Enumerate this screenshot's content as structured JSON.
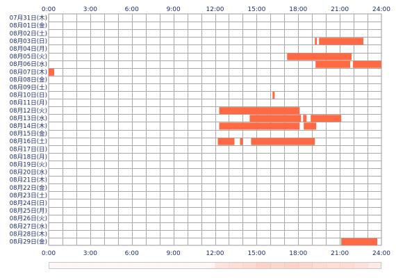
{
  "chart_data": {
    "type": "heatmap",
    "x_unit": "hour of day",
    "x_range": [
      0,
      24
    ],
    "x_ticks": [
      "0:00",
      "3:00",
      "6:00",
      "9:00",
      "12:00",
      "15:00",
      "18:00",
      "21:00",
      "24:00"
    ],
    "bar_color": "#ff6a45",
    "grid": true,
    "rows": [
      {
        "label": "07月31日(木)",
        "intervals": []
      },
      {
        "label": "08月01日(金)",
        "intervals": []
      },
      {
        "label": "08月02日(土)",
        "intervals": []
      },
      {
        "label": "08月03日(日)",
        "intervals": [
          [
            19.2,
            19.35
          ],
          [
            19.5,
            22.7
          ]
        ]
      },
      {
        "label": "08月04日(月)",
        "intervals": []
      },
      {
        "label": "08月05日(火)",
        "intervals": [
          [
            17.2,
            21.85
          ]
        ]
      },
      {
        "label": "08月06日(水)",
        "intervals": [
          [
            19.25,
            21.75
          ],
          [
            21.95,
            24.0
          ]
        ]
      },
      {
        "label": "08月07日(木)",
        "intervals": [
          [
            0.0,
            0.4
          ]
        ]
      },
      {
        "label": "08月08日(金)",
        "intervals": []
      },
      {
        "label": "08月09日(土)",
        "intervals": []
      },
      {
        "label": "08月10日(日)",
        "intervals": [
          [
            16.15,
            16.3
          ]
        ]
      },
      {
        "label": "08月11日(月)",
        "intervals": []
      },
      {
        "label": "08月12日(火)",
        "intervals": [
          [
            12.3,
            18.1
          ]
        ]
      },
      {
        "label": "08月13日(水)",
        "intervals": [
          [
            14.5,
            18.2
          ],
          [
            18.35,
            18.6
          ],
          [
            18.9,
            21.1
          ]
        ]
      },
      {
        "label": "08月14日(木)",
        "intervals": [
          [
            12.3,
            18.1
          ],
          [
            18.4,
            19.3
          ]
        ]
      },
      {
        "label": "08月15日(金)",
        "intervals": []
      },
      {
        "label": "08月16日(土)",
        "intervals": [
          [
            12.2,
            13.4
          ],
          [
            13.8,
            14.0
          ],
          [
            14.6,
            19.2
          ]
        ]
      },
      {
        "label": "08月17日(日)",
        "intervals": []
      },
      {
        "label": "08月18日(月)",
        "intervals": []
      },
      {
        "label": "08月19日(火)",
        "intervals": []
      },
      {
        "label": "08月20日(水)",
        "intervals": []
      },
      {
        "label": "08月21日(木)",
        "intervals": []
      },
      {
        "label": "08月22日(金)",
        "intervals": []
      },
      {
        "label": "08月23日(土)",
        "intervals": []
      },
      {
        "label": "08月24日(日)",
        "intervals": []
      },
      {
        "label": "08月25日(月)",
        "intervals": []
      },
      {
        "label": "08月26日(火)",
        "intervals": []
      },
      {
        "label": "08月27日(水)",
        "intervals": []
      },
      {
        "label": "08月28日(木)",
        "intervals": []
      },
      {
        "label": "08月29日(金)",
        "intervals": [
          [
            21.1,
            23.7
          ]
        ]
      }
    ],
    "summary_strip": {
      "description": "hourly activity density strip under the grid",
      "color": "#ff6a45",
      "levels": [
        0.05,
        0.05,
        0.05,
        0.05,
        0.05,
        0.05,
        0.05,
        0.05,
        0.05,
        0.05,
        0.05,
        0.05,
        0.18,
        0.22,
        0.25,
        0.3,
        0.28,
        0.3,
        0.28,
        0.24,
        0.22,
        0.24,
        0.2,
        0.15
      ]
    }
  }
}
